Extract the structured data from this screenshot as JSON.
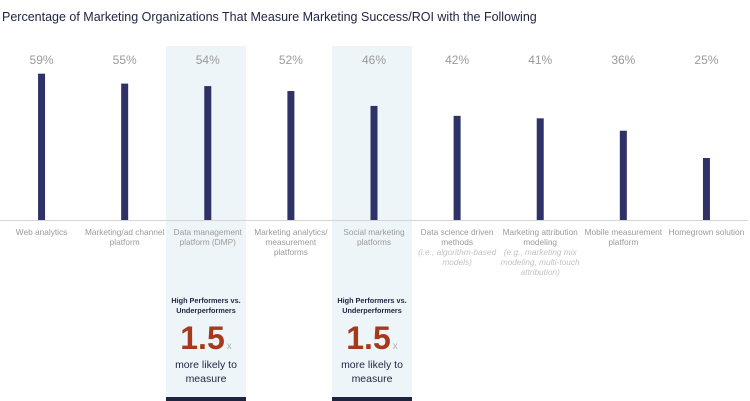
{
  "chart_data": {
    "type": "bar",
    "title": "Percentage of Marketing Organizations That Measure Marketing Success/ROI with the Following",
    "ylim": [
      0,
      100
    ],
    "categories": [
      {
        "label": "Web analytics",
        "sub": ""
      },
      {
        "label": "Marketing/ad channel platform",
        "sub": ""
      },
      {
        "label": "Data management platform (DMP)",
        "sub": ""
      },
      {
        "label": "Marketing analytics/ measurement platforms",
        "sub": ""
      },
      {
        "label": "Social marketing platforms",
        "sub": ""
      },
      {
        "label": "Data science driven methods",
        "sub": "(i.e., algorithm-based models)"
      },
      {
        "label": "Marketing attribution modeling",
        "sub": "(e.g., marketing mix modeling, multi-touch attribution)"
      },
      {
        "label": "Mobile measurement platform",
        "sub": ""
      },
      {
        "label": "Homegrown solution",
        "sub": ""
      }
    ],
    "values": [
      59,
      55,
      54,
      52,
      46,
      42,
      41,
      36,
      25
    ],
    "value_labels": [
      "59%",
      "55%",
      "54%",
      "52%",
      "46%",
      "42%",
      "41%",
      "36%",
      "25%"
    ],
    "highlighted": [
      2,
      4
    ],
    "colors": {
      "bar": "#2e3266",
      "highlight": "#eef5f9",
      "accent": "#a6381d",
      "label": "#9a9a9a"
    }
  },
  "callouts": [
    {
      "heading": "High Performers vs. Underperformers",
      "multiplier": "1.5",
      "x_suffix": "x",
      "text": "more likely to measure"
    },
    {
      "heading": "High Performers vs. Underperformers",
      "multiplier": "1.5",
      "x_suffix": "x",
      "text": "more likely to measure"
    }
  ]
}
